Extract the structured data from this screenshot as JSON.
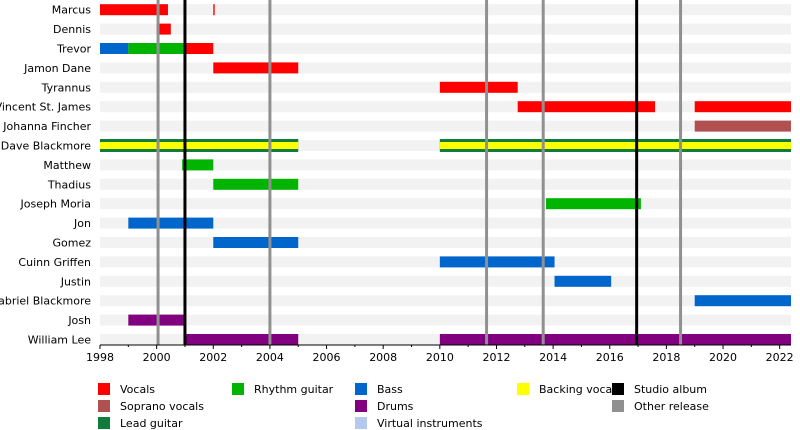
{
  "chart_data": {
    "type": "timeline",
    "x_range": [
      1998,
      2022.4
    ],
    "x_ticks": [
      1998,
      2000,
      2002,
      2004,
      2006,
      2008,
      2010,
      2012,
      2014,
      2016,
      2018,
      2020,
      2022
    ],
    "colors": {
      "Vocals": "#ff0000",
      "Soprano vocals": "#b05050",
      "Lead guitar": "#107c3c",
      "Rhythm guitar": "#00b400",
      "Bass": "#0066cc",
      "Drums": "#800080",
      "Virtual instruments": "#b4c8f0",
      "Backing vocals": "#ffff00",
      "Studio album": "#000000",
      "Other release": "#909090"
    },
    "members": [
      {
        "name": "Marcus",
        "bars": [
          {
            "role": "Vocals",
            "start": 1998.0,
            "end": 2000.4
          },
          {
            "role": "Vocals",
            "start": 2002.0,
            "end": 2002.05
          }
        ]
      },
      {
        "name": "Dennis",
        "bars": [
          {
            "role": "Vocals",
            "start": 2000.0,
            "end": 2000.5
          }
        ]
      },
      {
        "name": "Trevor",
        "bars": [
          {
            "role": "Bass",
            "start": 1998.0,
            "end": 1999.0
          },
          {
            "role": "Rhythm guitar",
            "start": 1999.0,
            "end": 2001.0
          },
          {
            "role": "Vocals",
            "start": 2001.0,
            "end": 2002.0
          }
        ]
      },
      {
        "name": "Jamon Dane",
        "bars": [
          {
            "role": "Vocals",
            "start": 2002.0,
            "end": 2005.0
          }
        ]
      },
      {
        "name": "Tyrannus",
        "bars": [
          {
            "role": "Vocals",
            "start": 2010.0,
            "end": 2012.75
          }
        ]
      },
      {
        "name": "Vincent St. James",
        "bars": [
          {
            "role": "Vocals",
            "start": 2012.75,
            "end": 2017.6
          },
          {
            "role": "Vocals",
            "start": 2019.0,
            "end": 2022.4
          }
        ]
      },
      {
        "name": "Johanna Fincher",
        "bars": [
          {
            "role": "Soprano vocals",
            "start": 2019.0,
            "end": 2022.4
          }
        ]
      },
      {
        "name": "Dave Blackmore",
        "special": "lead-backing",
        "bars": [
          {
            "role": "Lead guitar",
            "start": 1998.0,
            "end": 2005.0
          },
          {
            "role": "Lead guitar",
            "start": 2010.0,
            "end": 2022.4
          }
        ]
      },
      {
        "name": "Matthew",
        "bars": [
          {
            "role": "Rhythm guitar",
            "start": 2000.9,
            "end": 2002.0
          }
        ]
      },
      {
        "name": "Thadius",
        "bars": [
          {
            "role": "Rhythm guitar",
            "start": 2002.0,
            "end": 2005.0
          }
        ]
      },
      {
        "name": "Joseph Moria",
        "bars": [
          {
            "role": "Rhythm guitar",
            "start": 2013.75,
            "end": 2017.1
          }
        ]
      },
      {
        "name": "Jon",
        "bars": [
          {
            "role": "Bass",
            "start": 1999.0,
            "end": 2002.0
          }
        ]
      },
      {
        "name": "Gomez",
        "bars": [
          {
            "role": "Bass",
            "start": 2002.0,
            "end": 2005.0
          }
        ]
      },
      {
        "name": "Cuinn Griffen",
        "bars": [
          {
            "role": "Bass",
            "start": 2010.0,
            "end": 2014.05
          }
        ]
      },
      {
        "name": "Justin",
        "bars": [
          {
            "role": "Bass",
            "start": 2014.05,
            "end": 2016.05
          }
        ]
      },
      {
        "name": "Gabriel Blackmore",
        "bars": [
          {
            "role": "Bass",
            "start": 2019.0,
            "end": 2022.4
          }
        ]
      },
      {
        "name": "Josh",
        "bars": [
          {
            "role": "Drums",
            "start": 1999.0,
            "end": 2001.0
          }
        ]
      },
      {
        "name": "William Lee",
        "bars": [
          {
            "role": "Drums",
            "start": 2001.0,
            "end": 2005.0
          },
          {
            "role": "Drums",
            "start": 2010.0,
            "end": 2022.4
          }
        ]
      }
    ],
    "studio_albums": [
      2001.0,
      2016.95
    ],
    "other_releases": [
      2000.05,
      2004.0,
      2011.65,
      2013.65,
      2018.5
    ],
    "legend": [
      {
        "label": "Vocals",
        "role": "Vocals"
      },
      {
        "label": "Rhythm guitar",
        "role": "Rhythm guitar"
      },
      {
        "label": "Bass",
        "role": "Bass"
      },
      {
        "label": "Backing vocals",
        "role": "Backing vocals"
      },
      {
        "label": "Studio album",
        "role": "Studio album"
      },
      {
        "label": "Soprano vocals",
        "role": "Soprano vocals"
      },
      {
        "label": "Drums",
        "role": "Drums"
      },
      {
        "label": "Other release",
        "role": "Other release"
      },
      {
        "label": "Lead guitar",
        "role": "Lead guitar"
      },
      {
        "label": "Virtual instruments",
        "role": "Virtual instruments"
      }
    ]
  }
}
